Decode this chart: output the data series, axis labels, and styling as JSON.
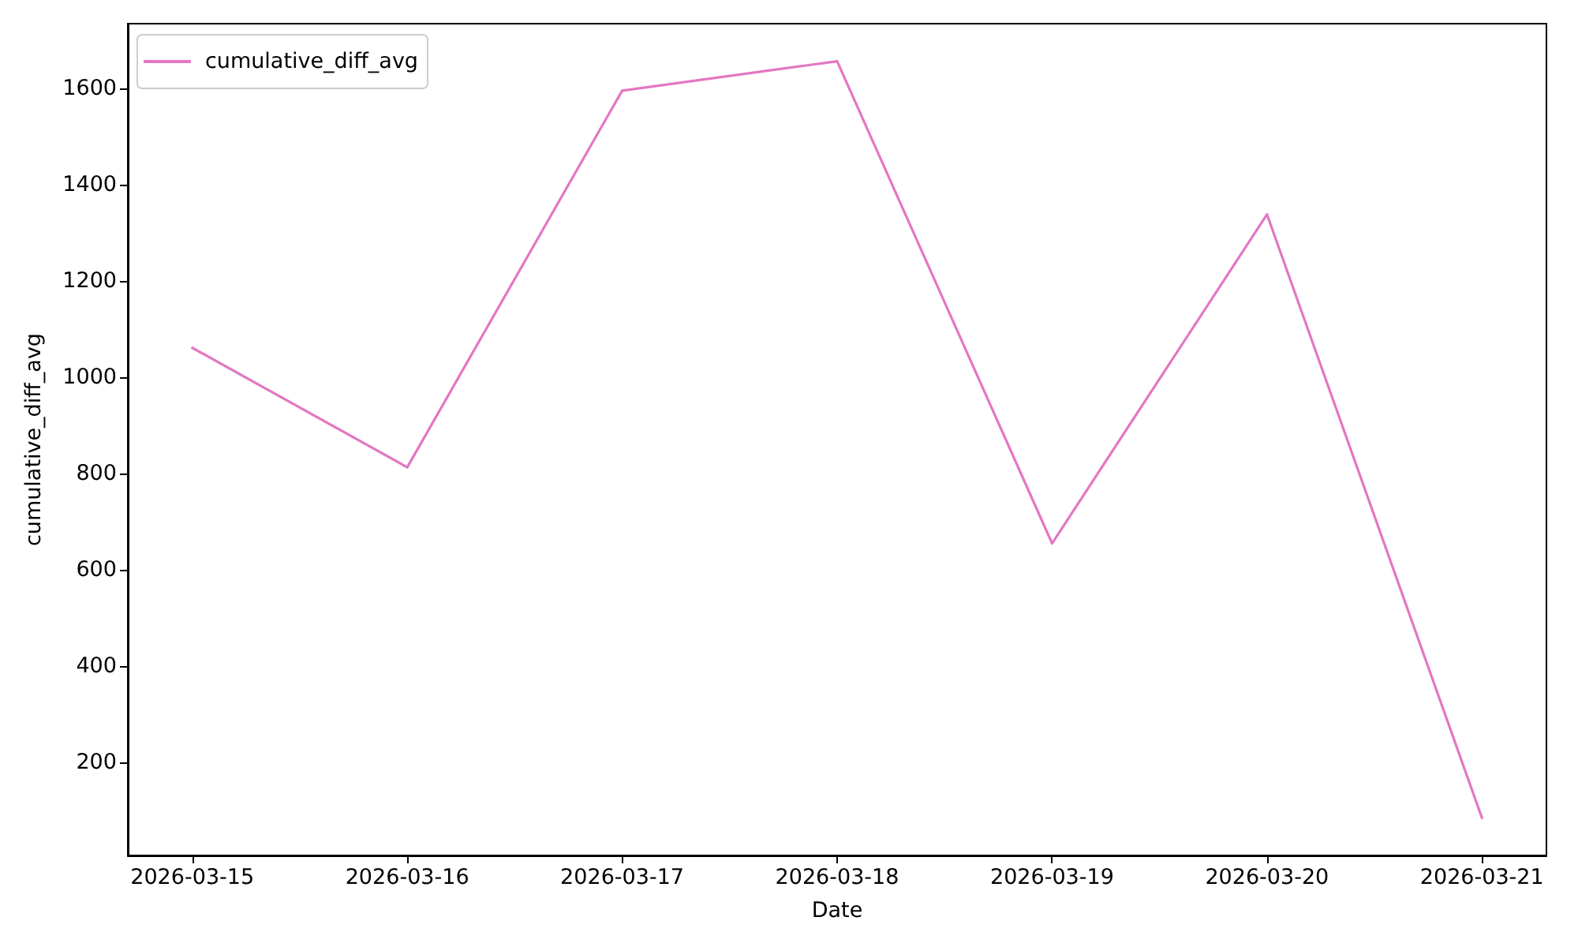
{
  "chart_data": {
    "type": "line",
    "xlabel": "Date",
    "ylabel": "cumulative_diff_avg",
    "x": [
      "2026-03-15",
      "2026-03-16",
      "2026-03-17",
      "2026-03-18",
      "2026-03-19",
      "2026-03-20",
      "2026-03-21"
    ],
    "series": [
      {
        "name": "cumulative_diff_avg",
        "color": "#e377c2",
        "values": [
          1061,
          813,
          1595,
          1656,
          655,
          1338,
          85
        ]
      }
    ],
    "xlim": [
      "2026-03-14T16:48",
      "2026-03-21T07:12"
    ],
    "xticks": [
      "2026-03-15",
      "2026-03-16",
      "2026-03-17",
      "2026-03-18",
      "2026-03-19",
      "2026-03-20",
      "2026-03-21"
    ],
    "ylim": [
      7,
      1734
    ],
    "yticks": [
      200,
      400,
      600,
      800,
      1000,
      1200,
      1400,
      1600
    ],
    "grid": false,
    "legend": "top left"
  }
}
